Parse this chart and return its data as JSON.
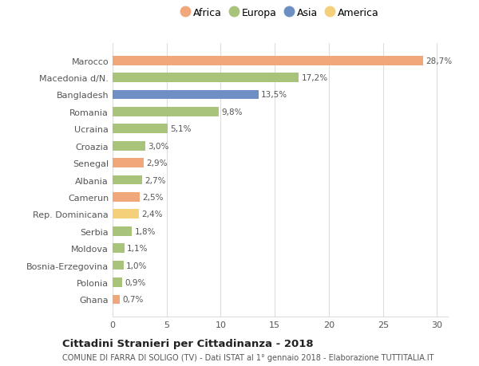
{
  "countries": [
    "Marocco",
    "Macedonia d/N.",
    "Bangladesh",
    "Romania",
    "Ucraina",
    "Croazia",
    "Senegal",
    "Albania",
    "Camerun",
    "Rep. Dominicana",
    "Serbia",
    "Moldova",
    "Bosnia-Erzegovina",
    "Polonia",
    "Ghana"
  ],
  "values": [
    28.7,
    17.2,
    13.5,
    9.8,
    5.1,
    3.0,
    2.9,
    2.7,
    2.5,
    2.4,
    1.8,
    1.1,
    1.0,
    0.9,
    0.7
  ],
  "labels": [
    "28,7%",
    "17,2%",
    "13,5%",
    "9,8%",
    "5,1%",
    "3,0%",
    "2,9%",
    "2,7%",
    "2,5%",
    "2,4%",
    "1,8%",
    "1,1%",
    "1,0%",
    "0,9%",
    "0,7%"
  ],
  "continents": [
    "Africa",
    "Europa",
    "Asia",
    "Europa",
    "Europa",
    "Europa",
    "Africa",
    "Europa",
    "Africa",
    "America",
    "Europa",
    "Europa",
    "Europa",
    "Europa",
    "Africa"
  ],
  "colors": {
    "Africa": "#F0A87A",
    "Europa": "#A8C47A",
    "Asia": "#6E8FC4",
    "America": "#F5D07A"
  },
  "legend_order": [
    "Africa",
    "Europa",
    "Asia",
    "America"
  ],
  "title1": "Cittadini Stranieri per Cittadinanza - 2018",
  "title2": "COMUNE DI FARRA DI SOLIGO (TV) - Dati ISTAT al 1° gennaio 2018 - Elaborazione TUTTITALIA.IT",
  "xlim": [
    0,
    31
  ],
  "xticks": [
    0,
    5,
    10,
    15,
    20,
    25,
    30
  ],
  "background_color": "#ffffff",
  "bar_height": 0.55,
  "grid_color": "#dddddd",
  "label_color": "#555555",
  "ytick_color": "#555555"
}
